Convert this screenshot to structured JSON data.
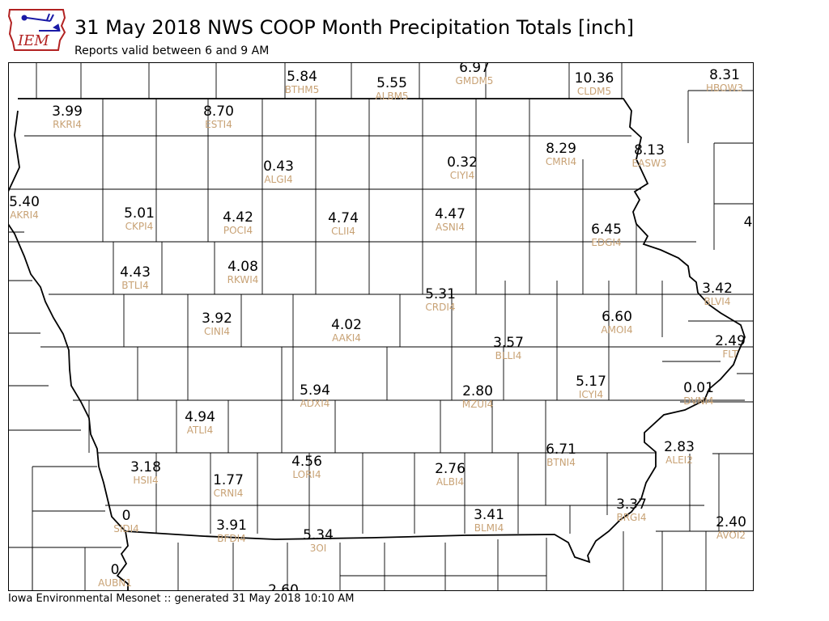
{
  "header": {
    "title": "31 May 2018 NWS COOP Month Precipitation Totals [inch]",
    "subtitle": "Reports valid between 6 and 9 AM",
    "logo_text": "IEM"
  },
  "footer": {
    "text": "Iowa Environmental Mesonet :: generated 31 May 2018 10:10 AM"
  },
  "colors": {
    "value_text": "#000000",
    "station_text": "#c8a275",
    "county_lines": "#000000",
    "logo_red": "#b22222",
    "logo_blue": "#1a1aa6"
  },
  "stations": [
    {
      "id": "BTHM5",
      "value": "5.84"
    },
    {
      "id": "ALBM5",
      "value": "5.55"
    },
    {
      "id": "GMDM5",
      "value": "6.97"
    },
    {
      "id": "CLDM5",
      "value": "10.36"
    },
    {
      "id": "HBOW3",
      "value": "8.31"
    },
    {
      "id": "RKRI4",
      "value": "3.99"
    },
    {
      "id": "ESTI4",
      "value": "8.70"
    },
    {
      "id": "ALGI4",
      "value": "0.43"
    },
    {
      "id": "CIYI4",
      "value": "0.32"
    },
    {
      "id": "CMRI4",
      "value": "8.29"
    },
    {
      "id": "EASW3",
      "value": "8.13"
    },
    {
      "id": "AKRI4",
      "value": "5.40"
    },
    {
      "id": "CKPI4",
      "value": "5.01"
    },
    {
      "id": "POCI4",
      "value": "4.42"
    },
    {
      "id": "CLII4",
      "value": "4.74"
    },
    {
      "id": "ASNI4",
      "value": "4.47"
    },
    {
      "id": "EDGI4",
      "value": "6.45"
    },
    {
      "id": "",
      "value": "4"
    },
    {
      "id": "BTLI4",
      "value": "4.43"
    },
    {
      "id": "RKWI4",
      "value": "4.08"
    },
    {
      "id": "CRDI4",
      "value": "5.31"
    },
    {
      "id": "BLVI4",
      "value": "3.42"
    },
    {
      "id": "CINI4",
      "value": "3.92"
    },
    {
      "id": "AAKI4",
      "value": "4.02"
    },
    {
      "id": "AMOI4",
      "value": "6.60"
    },
    {
      "id": "BLLI4",
      "value": "3.57"
    },
    {
      "id": "FLT",
      "value": "2.49"
    },
    {
      "id": "ADXI4",
      "value": "5.94"
    },
    {
      "id": "MZUI4",
      "value": "2.80"
    },
    {
      "id": "ICYI4",
      "value": "5.17"
    },
    {
      "id": "DVNI4",
      "value": "0.01"
    },
    {
      "id": "ATLI4",
      "value": "4.94"
    },
    {
      "id": "BTNI4",
      "value": "6.71"
    },
    {
      "id": "ALEI2",
      "value": "2.83"
    },
    {
      "id": "HSII4",
      "value": "3.18"
    },
    {
      "id": "CRNI4",
      "value": "1.77"
    },
    {
      "id": "LORI4",
      "value": "4.56"
    },
    {
      "id": "ALBI4",
      "value": "2.76"
    },
    {
      "id": "SIDI4",
      "value": "0"
    },
    {
      "id": "BFDI4",
      "value": "3.91"
    },
    {
      "id": "3OI",
      "value": "5.34"
    },
    {
      "id": "BLMI4",
      "value": "3.41"
    },
    {
      "id": "BRGI4",
      "value": "3.37"
    },
    {
      "id": "AVOI2",
      "value": "2.40"
    },
    {
      "id": "AUBN1",
      "value": "0"
    },
    {
      "id": "",
      "value": "2.60"
    }
  ]
}
